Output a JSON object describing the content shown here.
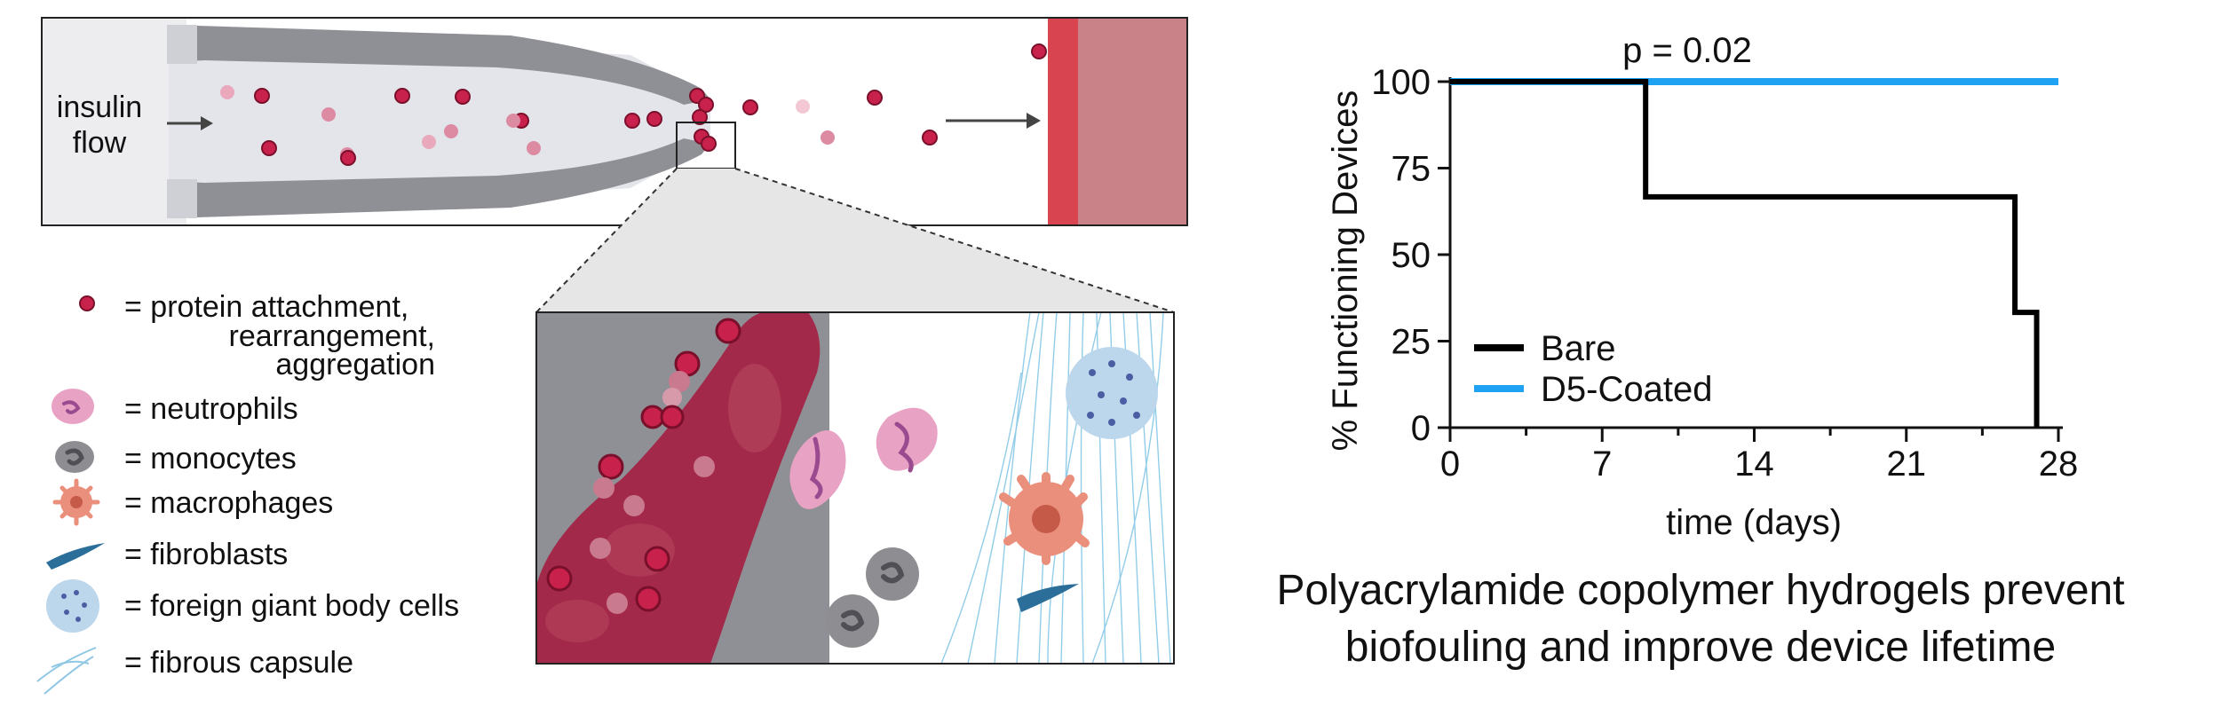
{
  "schematic": {
    "flow_label_line1": "insulin",
    "flow_label_line2": "flow"
  },
  "legend": [
    {
      "icon": "protein-dot-icon",
      "label_lines": [
        "= protein attachment,",
        "rearrangement,",
        "aggregation"
      ]
    },
    {
      "icon": "neutrophil-icon",
      "label_lines": [
        "= neutrophils"
      ]
    },
    {
      "icon": "monocyte-icon",
      "label_lines": [
        "= monocytes"
      ]
    },
    {
      "icon": "macrophage-icon",
      "label_lines": [
        "= macrophages"
      ]
    },
    {
      "icon": "fibroblast-icon",
      "label_lines": [
        "= fibroblasts"
      ]
    },
    {
      "icon": "giant-cell-icon",
      "label_lines": [
        "= foreign giant body cells"
      ]
    },
    {
      "icon": "fibrous-capsule-icon",
      "label_lines": [
        "= fibrous capsule"
      ]
    }
  ],
  "colors": {
    "protein": "#c8214b",
    "device_gray": "#8f9096",
    "tissue": "#a3294a",
    "bare": "#000000",
    "coated": "#1fa2f2",
    "neutrophil": "#e8a2c4",
    "giant_cell": "#bcd6ec",
    "macrophage": "#ea8f7b",
    "fibroblast": "#2a6e99"
  },
  "chart_data": {
    "type": "line",
    "step": true,
    "title": "p = 0.02",
    "xlabel": "time (days)",
    "ylabel": "% Functioning Devices",
    "xlim": [
      0,
      28
    ],
    "ylim": [
      0,
      100
    ],
    "xticks": [
      0,
      7,
      14,
      21,
      28
    ],
    "yticks": [
      0,
      25,
      50,
      75,
      100
    ],
    "legend_position": "bottom-left",
    "series": [
      {
        "name": "Bare",
        "color": "#000000",
        "x": [
          0,
          9,
          9,
          26,
          26,
          27,
          27
        ],
        "y": [
          100,
          100,
          66.7,
          66.7,
          33.3,
          33.3,
          0
        ]
      },
      {
        "name": "D5-Coated",
        "color": "#1fa2f2",
        "x": [
          0,
          28
        ],
        "y": [
          100,
          100
        ]
      }
    ]
  },
  "caption": {
    "line1": "Polyacrylamide copolymer hydrogels prevent",
    "line2": "biofouling and improve device lifetime"
  }
}
